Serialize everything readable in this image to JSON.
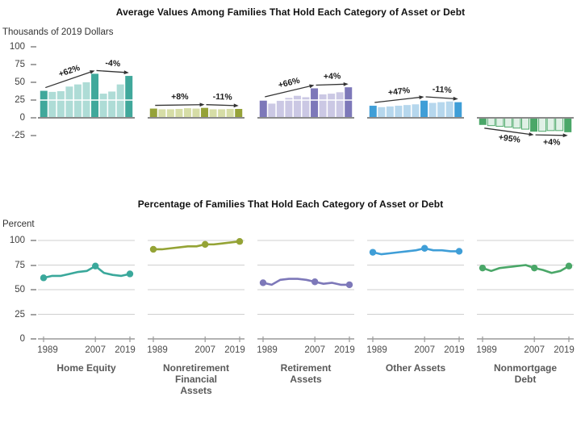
{
  "chart_data": [
    {
      "type": "bar",
      "title": "Average Values Among Families That Hold Each Category of Asset or Debt",
      "ylabel": "Thousands of 2019 Dollars",
      "ylim": [
        -25,
        100
      ],
      "y_ticks": [
        100,
        75,
        50,
        25,
        0,
        -25
      ],
      "grid": "white line at 25 through bars",
      "x": [
        1989,
        1992,
        1995,
        1998,
        2001,
        2004,
        2007,
        2010,
        2013,
        2016,
        2019
      ],
      "highlight_x": [
        1989,
        2007,
        2019
      ],
      "panels": [
        {
          "category": "Home Equity",
          "category_lines": [
            "Home Equity"
          ],
          "color": "#40A89B",
          "light_color": "#AEDCD6",
          "values": [
            38,
            36.5,
            37.5,
            44,
            47,
            50,
            62,
            34,
            37,
            47,
            59
          ],
          "annotations": [
            {
              "label": "+62%",
              "from": 1989,
              "to": 2007
            },
            {
              "label": "-4%",
              "from": 2007,
              "to": 2019
            }
          ]
        },
        {
          "category": "Nonretirement Financial Assets",
          "category_lines": [
            "Nonretirement",
            "Financial",
            "Assets"
          ],
          "color": "#95A238",
          "light_color": "#D6DDA6",
          "values": [
            13,
            12,
            12,
            12.5,
            13.5,
            13,
            14,
            12,
            12,
            12.5,
            12.5
          ],
          "annotations": [
            {
              "label": "+8%",
              "from": 1989,
              "to": 2007
            },
            {
              "label": "-11%",
              "from": 2007,
              "to": 2019
            }
          ]
        },
        {
          "category": "Retirement Assets",
          "category_lines": [
            "Retirement",
            "Assets"
          ],
          "color": "#7D78B9",
          "light_color": "#CBC8E4",
          "values": [
            25,
            20,
            24,
            28,
            31,
            29,
            41.5,
            33,
            34,
            36,
            43
          ],
          "annotations": [
            {
              "label": "+66%",
              "from": 1989,
              "to": 2007
            },
            {
              "label": "+4%",
              "from": 2007,
              "to": 2019
            }
          ]
        },
        {
          "category": "Other Assets",
          "category_lines": [
            "Other Assets"
          ],
          "color": "#3F9ED7",
          "light_color": "#B6D7ED",
          "values": [
            17,
            15,
            16,
            17,
            18,
            19,
            25,
            21,
            22,
            23,
            22
          ],
          "annotations": [
            {
              "label": "+47%",
              "from": 1989,
              "to": 2007
            },
            {
              "label": "-11%",
              "from": 2007,
              "to": 2019
            }
          ]
        },
        {
          "category": "Nonmortgage Debt",
          "category_lines": [
            "Nonmortgage",
            "Debt"
          ],
          "color": "#4AA768",
          "light_color": "#E0F0E6",
          "light_stroke": "#4FA96B",
          "values": [
            -10,
            -11,
            -12,
            -13,
            -14.5,
            -16,
            -19.5,
            -19,
            -18,
            -18,
            -20.3
          ],
          "annotations": [
            {
              "label": "+95%",
              "from": 1989,
              "to": 2007
            },
            {
              "label": "+4%",
              "from": 2007,
              "to": 2019
            }
          ]
        }
      ]
    },
    {
      "type": "line",
      "title": "Percentage of Families That Hold Each Category of Asset or Debt",
      "ylabel": "Percent",
      "ylim": [
        0,
        100
      ],
      "y_ticks": [
        100,
        75,
        50,
        25,
        0
      ],
      "grid": "horizontal gridlines at 25/50/75/100",
      "x": [
        1989,
        1992,
        1995,
        1998,
        2001,
        2004,
        2007,
        2010,
        2013,
        2016,
        2019
      ],
      "marker_x": [
        1989,
        2007,
        2019
      ],
      "x_tick_labels": [
        "1989",
        "2007",
        "2019"
      ],
      "panels": [
        {
          "category": "Home Equity",
          "category_lines": [
            "Home Equity"
          ],
          "color": "#3AA89B",
          "values": [
            62,
            64,
            64,
            66,
            68,
            69,
            74,
            67,
            65,
            64,
            66
          ]
        },
        {
          "category": "Nonretirement Financial Assets",
          "category_lines": [
            "Nonretirement",
            "Financial",
            "Assets"
          ],
          "color": "#94A335",
          "values": [
            91,
            91,
            92,
            93,
            94,
            94,
            96,
            96,
            97,
            98,
            99
          ]
        },
        {
          "category": "Retirement Assets",
          "category_lines": [
            "Retirement",
            "Assets"
          ],
          "color": "#7D78B9",
          "values": [
            57,
            55,
            60,
            61,
            61,
            60,
            58,
            56,
            57,
            55,
            55
          ]
        },
        {
          "category": "Other Assets",
          "category_lines": [
            "Other Assets"
          ],
          "color": "#3F9ED7",
          "values": [
            88,
            86,
            87,
            88,
            89,
            90,
            92,
            90,
            90,
            89,
            89
          ]
        },
        {
          "category": "Nonmortgage Debt",
          "category_lines": [
            "Nonmortgage",
            "Debt"
          ],
          "color": "#4AA768",
          "values": [
            72,
            69,
            72,
            73,
            74,
            75,
            72,
            70,
            67,
            69,
            74
          ]
        }
      ]
    }
  ]
}
